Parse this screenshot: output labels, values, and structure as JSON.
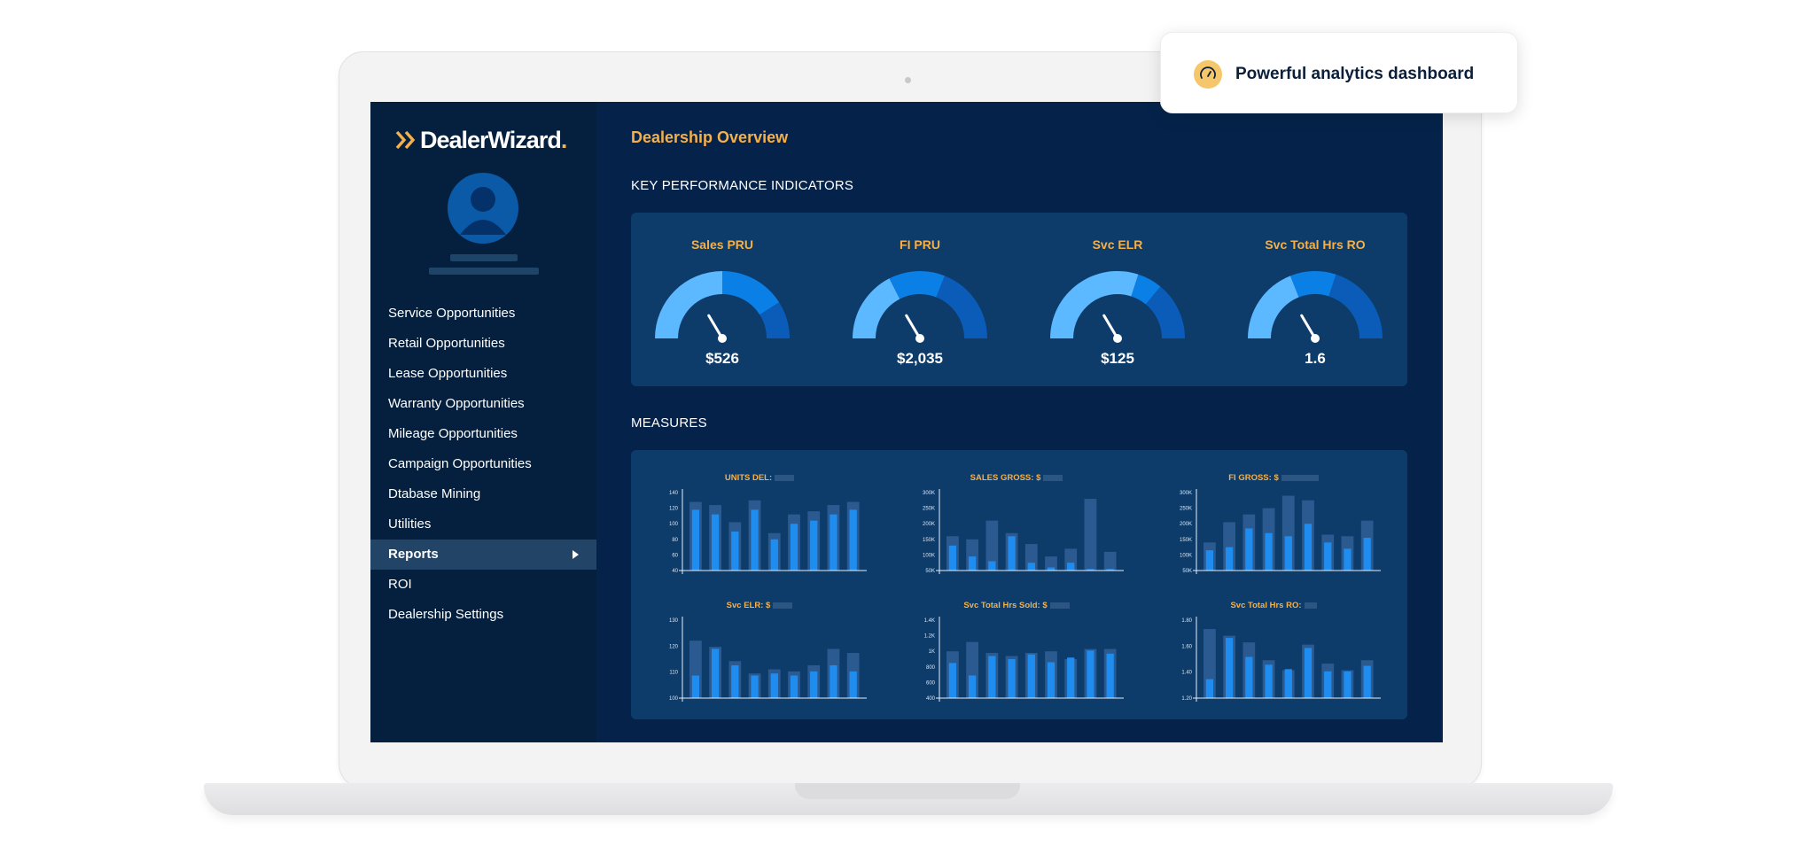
{
  "callout": {
    "text": "Powerful analytics dashboard",
    "icon": "gauge-icon"
  },
  "brand": {
    "name": "DealerWizard",
    "accent": "#f5b04a"
  },
  "sidebar": {
    "items": [
      {
        "label": "Service Opportunities"
      },
      {
        "label": "Retail Opportunities"
      },
      {
        "label": "Lease Opportunities"
      },
      {
        "label": "Warranty Opportunities"
      },
      {
        "label": "Mileage Opportunities"
      },
      {
        "label": "Campaign Opportunities"
      },
      {
        "label": "Dtabase Mining"
      },
      {
        "label": "Utilities"
      },
      {
        "label": "Reports",
        "active": true
      },
      {
        "label": "ROI"
      },
      {
        "label": "Dealership Settings"
      }
    ]
  },
  "main": {
    "title": "Dealership Overview",
    "kpi_heading": "KEY PERFORMANCE INDICATORS",
    "measures_heading": "MEASURES"
  },
  "kpis": [
    {
      "title": "Sales PRU",
      "value": "$526"
    },
    {
      "title": "FI PRU",
      "value": "$2,035"
    },
    {
      "title": "Svc ELR",
      "value": "$125"
    },
    {
      "title": "Svc Total Hrs RO",
      "value": "1.6"
    }
  ],
  "chart_data": [
    {
      "type": "bar",
      "title": "UNITS DEL:",
      "yticks": [
        "140",
        "120",
        "100",
        "80",
        "60",
        "40"
      ],
      "ylim": [
        40,
        140
      ],
      "series": [
        {
          "values": [
            128,
            124,
            102,
            130,
            88,
            112,
            116,
            124,
            128
          ]
        },
        {
          "values": [
            118,
            112,
            90,
            118,
            80,
            100,
            104,
            112,
            118
          ]
        }
      ]
    },
    {
      "type": "bar",
      "title": "SALES GROSS: $",
      "yticks": [
        "300K",
        "250K",
        "200K",
        "150K",
        "100K",
        "50K"
      ],
      "ylim": [
        50,
        300
      ],
      "series": [
        {
          "values": [
            160,
            150,
            210,
            170,
            135,
            95,
            120,
            280,
            110
          ]
        },
        {
          "values": [
            130,
            95,
            80,
            160,
            75,
            60,
            75,
            55,
            55
          ]
        }
      ]
    },
    {
      "type": "bar",
      "title": "FI GROSS: $",
      "yticks": [
        "300K",
        "250K",
        "200K",
        "150K",
        "100K",
        "50K"
      ],
      "ylim": [
        50,
        300
      ],
      "series": [
        {
          "values": [
            140,
            205,
            230,
            250,
            290,
            275,
            165,
            160,
            210
          ]
        },
        {
          "values": [
            115,
            125,
            185,
            170,
            160,
            200,
            140,
            120,
            155
          ]
        }
      ]
    },
    {
      "type": "bar",
      "title": "Svc ELR: $",
      "yticks": [
        "130",
        "120",
        "110",
        "100"
      ],
      "ylim": [
        92,
        130
      ],
      "series": [
        {
          "values": [
            120,
            117,
            110,
            104,
            106,
            105,
            108,
            116,
            114
          ]
        },
        {
          "values": [
            103,
            116,
            108,
            103,
            104,
            103,
            105,
            108,
            105
          ]
        }
      ]
    },
    {
      "type": "bar",
      "title": "Svc Total Hrs Sold: $",
      "yticks": [
        "1.4K",
        "1.2K",
        "1K",
        "800",
        "600",
        "400"
      ],
      "ylim": [
        400,
        1400
      ],
      "series": [
        {
          "values": [
            1000,
            1120,
            980,
            940,
            980,
            1000,
            900,
            1030,
            1030
          ]
        },
        {
          "values": [
            850,
            690,
            940,
            900,
            960,
            860,
            920,
            1010,
            970
          ]
        }
      ]
    },
    {
      "type": "bar",
      "title": "Svc Total Hrs RO:",
      "yticks": [
        "1.80",
        "1.60",
        "1.40",
        "1.20"
      ],
      "ylim": [
        1.1,
        1.8
      ],
      "series": [
        {
          "values": [
            1.72,
            1.66,
            1.6,
            1.44,
            1.35,
            1.58,
            1.41,
            1.35,
            1.44
          ]
        },
        {
          "values": [
            1.27,
            1.64,
            1.47,
            1.4,
            1.36,
            1.55,
            1.34,
            1.34,
            1.39
          ]
        }
      ]
    }
  ]
}
